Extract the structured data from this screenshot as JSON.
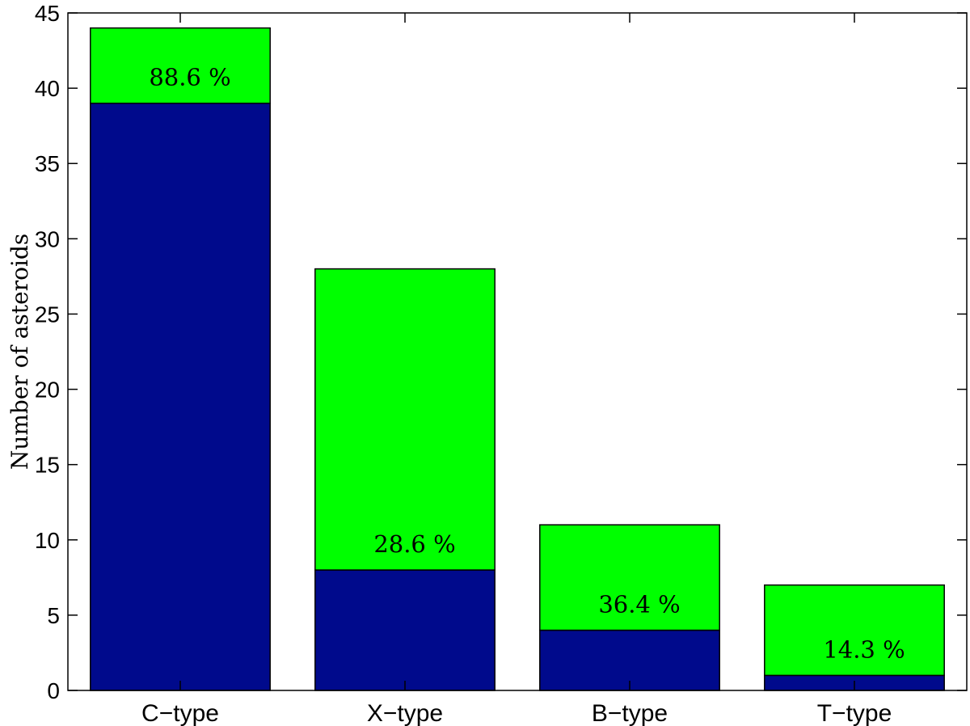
{
  "chart_data": {
    "type": "bar",
    "stacked": true,
    "categories": [
      "C−type",
      "X−type",
      "B−type",
      "T−type"
    ],
    "series": [
      {
        "values": [
          39,
          8,
          4,
          1
        ],
        "color": "#000a8c"
      },
      {
        "values": [
          5,
          20,
          7,
          6
        ],
        "color": "#00ff00"
      }
    ],
    "totals": [
      44,
      28,
      11,
      7
    ],
    "annotations": [
      "88.6 %",
      "28.6 %",
      "36.4 %",
      "14.3 %"
    ],
    "xlabel": "",
    "ylabel": "Number of asteroids",
    "ylim": [
      0,
      45
    ],
    "yticks": [
      0,
      5,
      10,
      15,
      20,
      25,
      30,
      35,
      40,
      45
    ],
    "grid": false,
    "legend": "none"
  }
}
